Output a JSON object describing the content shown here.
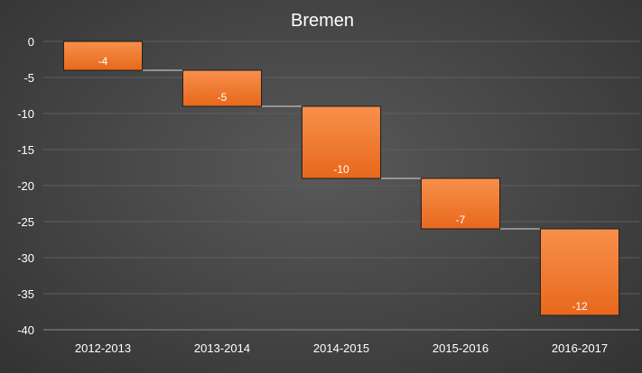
{
  "chart_data": {
    "type": "bar",
    "subtype": "waterfall",
    "title": "Bremen",
    "categories": [
      "2012-2013",
      "2013-2014",
      "2014-2015",
      "2015-2016",
      "2016-2017"
    ],
    "values": [
      -4,
      -5,
      -10,
      -7,
      -12
    ],
    "data_labels": [
      "-4",
      "-5",
      "-10",
      "-7",
      "-12"
    ],
    "y_ticks": [
      "0",
      "-5",
      "-10",
      "-15",
      "-20",
      "-25",
      "-30",
      "-35",
      "-40"
    ],
    "ylim": [
      -40,
      0
    ],
    "grid": true,
    "legend": "none",
    "colors": {
      "bar_top": "#f7904b",
      "bar_bottom": "#e8681c",
      "bar_edge": "#1e1e1e",
      "gridline": "#5e5e5e",
      "connector": "#d9d9d9",
      "text": "#ffffff",
      "axis": "#8a8a8a"
    }
  }
}
